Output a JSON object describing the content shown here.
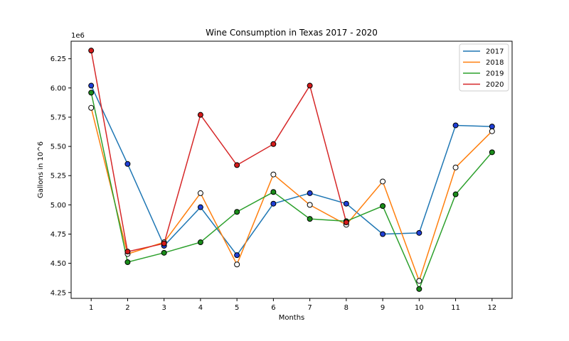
{
  "chart_data": {
    "type": "line",
    "title": "Wine Consumption in Texas 2017 - 2020",
    "xlabel": "Months",
    "ylabel": "Gallons in 10^6",
    "y_offset_label": "1e6",
    "x": [
      1,
      2,
      3,
      4,
      5,
      6,
      7,
      8,
      9,
      10,
      11,
      12
    ],
    "ylim": [
      4.2,
      6.4
    ],
    "yticks": [
      4.25,
      4.5,
      4.75,
      5.0,
      5.25,
      5.5,
      5.75,
      6.0,
      6.25
    ],
    "ytick_labels": [
      "4.25",
      "4.50",
      "4.75",
      "5.00",
      "5.25",
      "5.50",
      "5.75",
      "6.00",
      "6.25"
    ],
    "grid": false,
    "legend_position": "top-right",
    "series": [
      {
        "name": "2017",
        "color": "#1f77b4",
        "marker_color": "#1f3fd6",
        "values": [
          6.02,
          5.35,
          4.65,
          4.98,
          4.57,
          5.01,
          5.1,
          5.01,
          4.75,
          4.76,
          5.68,
          5.67
        ]
      },
      {
        "name": "2018",
        "color": "#ff7f0e",
        "marker_color": "#ffffff",
        "values": [
          5.83,
          4.58,
          4.68,
          5.1,
          4.49,
          5.26,
          5.0,
          4.83,
          5.2,
          4.35,
          5.32,
          5.63
        ]
      },
      {
        "name": "2019",
        "color": "#2ca02c",
        "marker_color": "#1a8c1a",
        "values": [
          5.96,
          4.51,
          4.59,
          4.68,
          4.94,
          5.11,
          4.88,
          4.86,
          4.99,
          4.28,
          5.09,
          5.45
        ]
      },
      {
        "name": "2020",
        "color": "#d62728",
        "marker_color": "#d41a1a",
        "values": [
          6.32,
          4.6,
          4.67,
          5.77,
          5.34,
          5.52,
          6.02,
          4.85,
          null,
          null,
          null,
          null
        ]
      }
    ]
  }
}
